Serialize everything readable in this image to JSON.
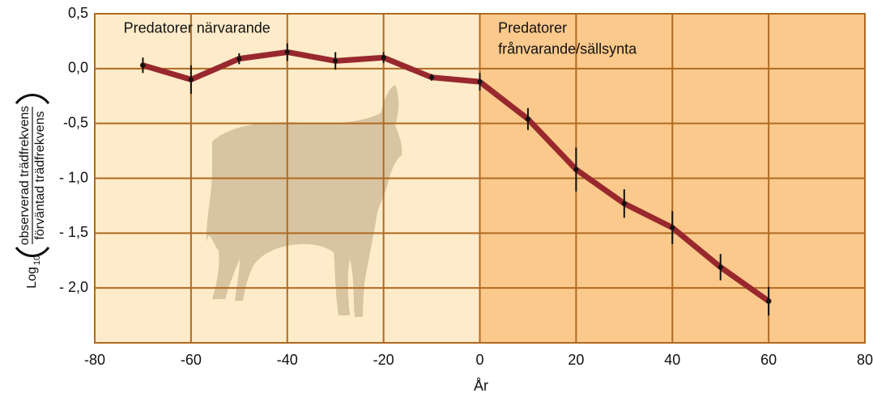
{
  "chart_data": {
    "type": "line",
    "x": [
      -70,
      -60,
      -50,
      -40,
      -30,
      -20,
      -10,
      0,
      10,
      20,
      30,
      40,
      50,
      60
    ],
    "series": [
      {
        "color": "#98282d",
        "values": [
          0.03,
          -0.1,
          0.09,
          0.15,
          0.07,
          0.1,
          -0.08,
          -0.12,
          -0.46,
          -0.92,
          -1.23,
          -1.45,
          -1.81,
          -2.12
        ],
        "errors": [
          0.07,
          0.13,
          0.05,
          0.08,
          0.08,
          0.05,
          0.03,
          0.08,
          0.1,
          0.2,
          0.13,
          0.15,
          0.12,
          0.13
        ]
      }
    ],
    "xlim": [
      -80,
      80
    ],
    "xticks": [
      -80,
      -60,
      -40,
      -20,
      0,
      20,
      40,
      60,
      80
    ],
    "ylim": [
      -2.5,
      0.5
    ],
    "yticks": [
      {
        "value": 0.5,
        "label": "0,5"
      },
      {
        "value": 0,
        "label": "0,0"
      },
      {
        "value": -0.5,
        "label": "-0,5"
      },
      {
        "value": -1,
        "label": "- 1,0"
      },
      {
        "value": -1.5,
        "label": "- 1,5"
      },
      {
        "value": -2,
        "label": "- 2,0"
      }
    ],
    "grid": true,
    "grid_color": "#b06a22",
    "regions": [
      {
        "from": -80,
        "to": 0,
        "color": "#fdebc9"
      },
      {
        "from": 0,
        "to": 80,
        "color": "#fbc98c"
      }
    ],
    "annotations": [
      {
        "x": -74,
        "y": 0.36,
        "lines": [
          "Predatorer närvarande"
        ]
      },
      {
        "x": 3.8,
        "y": 0.36,
        "lines": [
          "Predatorer",
          "frånvarande/sällsynta"
        ]
      }
    ],
    "xlabel": "År",
    "ylabel": {
      "base": "Log",
      "subscript": "10",
      "numerator": "observerad trädfrekvens",
      "denominator": "förväntad trädfrekvens"
    }
  }
}
